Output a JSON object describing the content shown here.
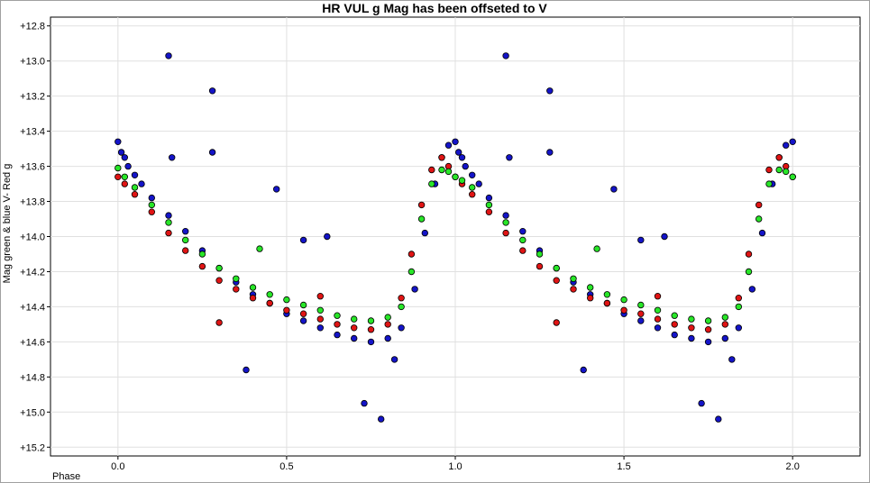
{
  "chart_data": {
    "type": "scatter",
    "title": "HR VUL g Mag has been offseted to V",
    "xlabel": "Phase",
    "ylabel": "Mag green & blue V- Red g",
    "xlim": [
      -0.2,
      2.2
    ],
    "ylim": [
      15.25,
      12.75
    ],
    "y_inverted": true,
    "grid": true,
    "legend": "none",
    "x_ticks": [
      {
        "value": 0.0,
        "label": "0.0"
      },
      {
        "value": 0.5,
        "label": "0.5"
      },
      {
        "value": 1.0,
        "label": "1.0"
      },
      {
        "value": 1.5,
        "label": "1.5"
      },
      {
        "value": 2.0,
        "label": "2.0"
      }
    ],
    "y_ticks": [
      {
        "value": 12.8,
        "label": "+12.8"
      },
      {
        "value": 13.0,
        "label": "+13.0"
      },
      {
        "value": 13.2,
        "label": "+13.2"
      },
      {
        "value": 13.4,
        "label": "+13.4"
      },
      {
        "value": 13.6,
        "label": "+13.6"
      },
      {
        "value": 13.8,
        "label": "+13.8"
      },
      {
        "value": 14.0,
        "label": "+14.0"
      },
      {
        "value": 14.2,
        "label": "+14.2"
      },
      {
        "value": 14.4,
        "label": "+14.4"
      },
      {
        "value": 14.6,
        "label": "+14.6"
      },
      {
        "value": 14.8,
        "label": "+14.8"
      },
      {
        "value": 15.0,
        "label": "+15.0"
      },
      {
        "value": 15.2,
        "label": "+15.2"
      }
    ],
    "colors": {
      "blue": "#1414c8",
      "red": "#e01414",
      "green": "#28e628",
      "outline": "#000000",
      "grid": "#e0e0e0"
    },
    "series": [
      {
        "color": "#1414c8",
        "x": [
          0.0,
          0.01,
          0.02,
          0.03,
          0.05,
          0.07,
          0.1,
          0.15,
          0.2,
          0.25,
          0.3,
          0.35,
          0.4,
          0.45,
          0.5,
          0.55,
          0.6,
          0.65,
          0.7,
          0.75,
          0.8,
          0.84,
          0.88,
          0.91,
          0.94,
          0.96,
          0.98,
          1.0,
          1.01,
          1.02,
          1.03,
          1.05,
          1.07,
          1.1,
          1.15,
          1.2,
          1.25,
          1.3,
          1.35,
          1.4,
          1.45,
          1.5,
          1.55,
          1.6,
          1.65,
          1.7,
          1.75,
          1.8,
          1.84,
          1.88,
          1.91,
          1.94,
          1.96,
          1.98,
          2.0,
          0.15,
          0.28,
          0.28,
          0.47,
          0.55,
          0.38,
          0.78,
          0.82,
          0.73,
          1.15,
          1.28,
          1.28,
          1.47,
          1.55,
          1.38,
          1.78,
          1.82,
          1.73,
          0.16,
          1.16,
          0.62,
          1.62
        ],
        "y": [
          13.46,
          13.52,
          13.55,
          13.6,
          13.65,
          13.7,
          13.78,
          13.88,
          13.97,
          14.08,
          14.18,
          14.26,
          14.33,
          14.38,
          14.44,
          14.48,
          14.52,
          14.56,
          14.58,
          14.6,
          14.58,
          14.52,
          14.3,
          13.98,
          13.7,
          13.55,
          13.48,
          13.46,
          13.52,
          13.55,
          13.6,
          13.65,
          13.7,
          13.78,
          13.88,
          13.97,
          14.08,
          14.18,
          14.26,
          14.33,
          14.38,
          14.44,
          14.48,
          14.52,
          14.56,
          14.58,
          14.6,
          14.58,
          14.52,
          14.3,
          13.98,
          13.7,
          13.55,
          13.48,
          13.46,
          12.97,
          13.17,
          13.52,
          13.73,
          14.02,
          14.76,
          15.04,
          14.7,
          14.95,
          12.97,
          13.17,
          13.52,
          13.73,
          14.02,
          14.76,
          15.04,
          14.7,
          14.95,
          13.55,
          13.55,
          14.0,
          14.0
        ]
      },
      {
        "color": "#e01414",
        "x": [
          0.0,
          0.02,
          0.05,
          0.1,
          0.15,
          0.2,
          0.25,
          0.3,
          0.35,
          0.4,
          0.45,
          0.5,
          0.55,
          0.6,
          0.65,
          0.7,
          0.75,
          0.8,
          0.84,
          0.87,
          0.9,
          0.93,
          0.96,
          0.98,
          1.0,
          1.02,
          1.05,
          1.1,
          1.15,
          1.2,
          1.25,
          1.3,
          1.35,
          1.4,
          1.45,
          1.5,
          1.55,
          1.6,
          1.65,
          1.7,
          1.75,
          1.8,
          1.84,
          1.87,
          1.9,
          1.93,
          1.96,
          1.98,
          2.0,
          0.3,
          0.6,
          1.3,
          1.6
        ],
        "y": [
          13.66,
          13.7,
          13.76,
          13.86,
          13.98,
          14.08,
          14.17,
          14.25,
          14.3,
          14.35,
          14.38,
          14.42,
          14.44,
          14.47,
          14.5,
          14.52,
          14.53,
          14.5,
          14.35,
          14.1,
          13.82,
          13.62,
          13.55,
          13.6,
          13.66,
          13.7,
          13.76,
          13.86,
          13.98,
          14.08,
          14.17,
          14.25,
          14.3,
          14.35,
          14.38,
          14.42,
          14.44,
          14.47,
          14.5,
          14.52,
          14.53,
          14.5,
          14.35,
          14.1,
          13.82,
          13.62,
          13.55,
          13.6,
          13.66,
          14.49,
          14.34,
          14.49,
          14.34
        ]
      },
      {
        "color": "#28e628",
        "x": [
          0.0,
          0.02,
          0.05,
          0.1,
          0.15,
          0.2,
          0.25,
          0.3,
          0.35,
          0.4,
          0.45,
          0.5,
          0.55,
          0.6,
          0.65,
          0.7,
          0.75,
          0.8,
          0.84,
          0.87,
          0.9,
          0.93,
          0.96,
          0.98,
          1.0,
          1.02,
          1.05,
          1.1,
          1.15,
          1.2,
          1.25,
          1.3,
          1.35,
          1.4,
          1.45,
          1.5,
          1.55,
          1.6,
          1.65,
          1.7,
          1.75,
          1.8,
          1.84,
          1.87,
          1.9,
          1.93,
          1.96,
          1.98,
          2.0,
          0.42,
          1.42
        ],
        "y": [
          13.61,
          13.66,
          13.72,
          13.82,
          13.92,
          14.02,
          14.1,
          14.18,
          14.24,
          14.29,
          14.33,
          14.36,
          14.39,
          14.42,
          14.45,
          14.47,
          14.48,
          14.46,
          14.4,
          14.2,
          13.9,
          13.7,
          13.62,
          13.63,
          13.66,
          13.68,
          13.72,
          13.82,
          13.92,
          14.02,
          14.1,
          14.18,
          14.24,
          14.29,
          14.33,
          14.36,
          14.39,
          14.42,
          14.45,
          14.47,
          14.48,
          14.46,
          14.4,
          14.2,
          13.9,
          13.7,
          13.62,
          13.63,
          13.66,
          14.07,
          14.07
        ]
      }
    ]
  }
}
